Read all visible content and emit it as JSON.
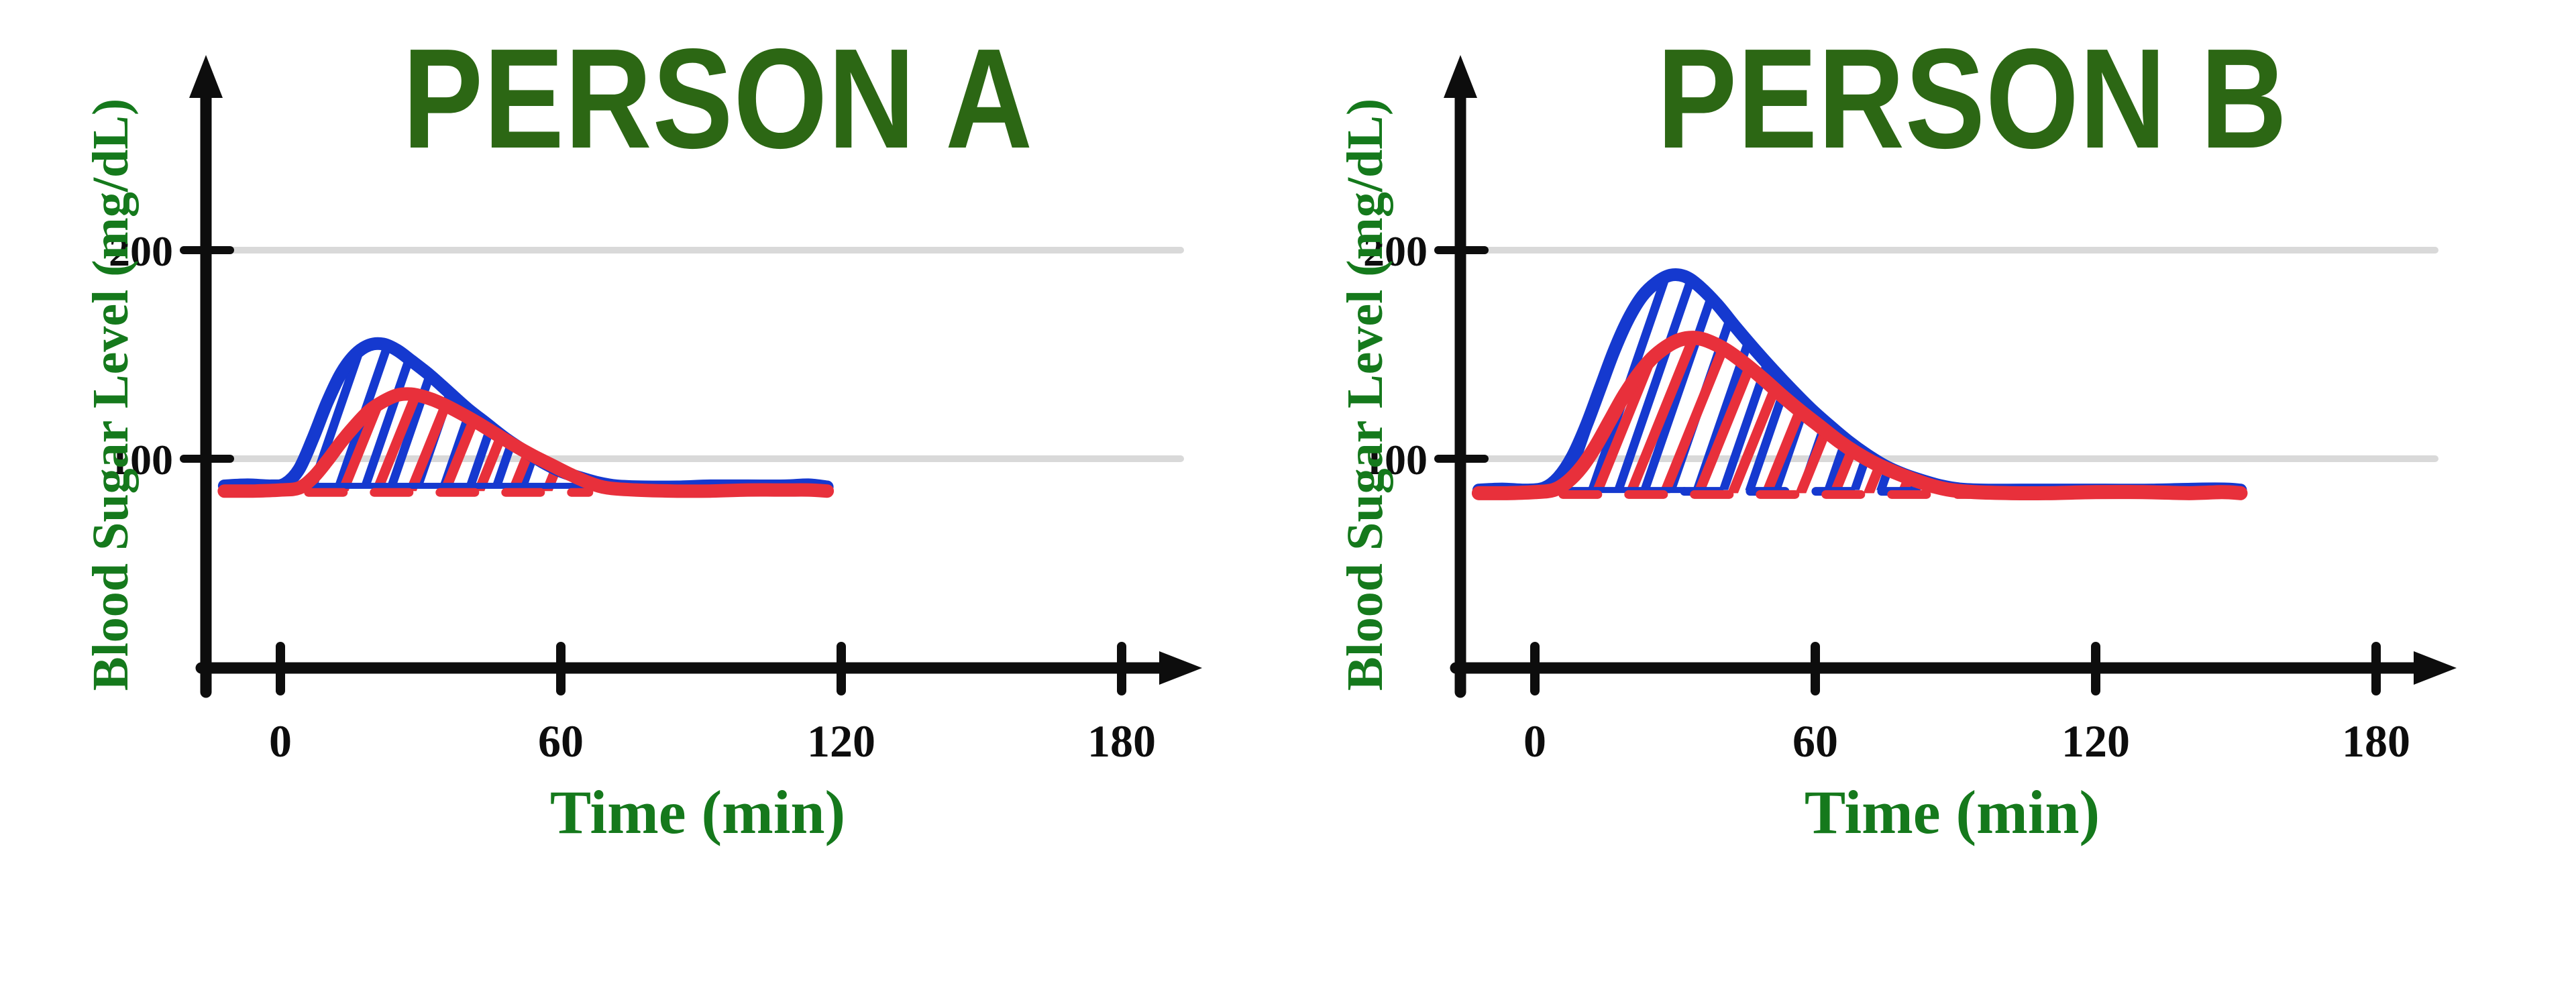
{
  "style": {
    "background": "#ffffff",
    "axis_color": "#0d0d0d",
    "grid_color": "#d9d9d9",
    "tick_text_color": "#0d0d0d",
    "title_color": "#2c6714",
    "label_color": "#15791c",
    "blue": "#1539cf",
    "red": "#e8303b"
  },
  "chart_data": [
    {
      "type": "line",
      "title": "PERSON A",
      "xlabel": "Time (min)",
      "ylabel": "Blood Sugar Level (mg/dL)",
      "x_ticks": [
        0,
        60,
        120,
        180
      ],
      "y_ticks": [
        200,
        100
      ],
      "gridlines_y": [
        200,
        100
      ],
      "x_axis_range_min": [
        -12,
        195
      ],
      "legend": "none",
      "series": [
        {
          "id": "blue-curve",
          "color": "#1539cf",
          "stroke_width": 19,
          "hatch": {
            "angle": 19,
            "spacing": 37,
            "width": 13
          },
          "baseline": 87,
          "baseline_solid": {
            "from": 0,
            "to": 68
          },
          "points": [
            [
              -12,
              87
            ],
            [
              -7,
              87.5
            ],
            [
              -2,
              87
            ],
            [
              1,
              88
            ],
            [
              4,
              95
            ],
            [
              7,
              110
            ],
            [
              10,
              127
            ],
            [
              13,
              141
            ],
            [
              16,
              150
            ],
            [
              19,
              154.5
            ],
            [
              22,
              155
            ],
            [
              25,
              152
            ],
            [
              28,
              147
            ],
            [
              32,
              140
            ],
            [
              36,
              132
            ],
            [
              40,
              124
            ],
            [
              44,
              117
            ],
            [
              48,
              110
            ],
            [
              52,
              104
            ],
            [
              56,
              98.5
            ],
            [
              60,
              94
            ],
            [
              64,
              91
            ],
            [
              68,
              88.5
            ],
            [
              72,
              87
            ],
            [
              78,
              86.5
            ],
            [
              85,
              86.5
            ],
            [
              92,
              87
            ],
            [
              100,
              87
            ],
            [
              108,
              87
            ],
            [
              113,
              87.5
            ],
            [
              117,
              86.5
            ]
          ]
        },
        {
          "id": "red-curve",
          "color": "#e8303b",
          "stroke_width": 20,
          "hatch": {
            "angle": 22,
            "spacing": 47,
            "width": 15
          },
          "baseline": 84.5,
          "baseline_dashed": {
            "from": 6,
            "to": 66
          },
          "points": [
            [
              -12,
              84.5
            ],
            [
              -6,
              84.5
            ],
            [
              0,
              85
            ],
            [
              4,
              86
            ],
            [
              7,
              91
            ],
            [
              10,
              99
            ],
            [
              13,
              108
            ],
            [
              16,
              116
            ],
            [
              19,
              123
            ],
            [
              22,
              127.5
            ],
            [
              25,
              130.5
            ],
            [
              28,
              131
            ],
            [
              31,
              129.5
            ],
            [
              34,
              127
            ],
            [
              38,
              122.5
            ],
            [
              42,
              117.5
            ],
            [
              46,
              112
            ],
            [
              50,
              106.5
            ],
            [
              54,
              101.5
            ],
            [
              58,
              97
            ],
            [
              62,
              92.5
            ],
            [
              66,
              88.5
            ],
            [
              70,
              86
            ],
            [
              76,
              85
            ],
            [
              84,
              84.5
            ],
            [
              92,
              84.5
            ],
            [
              100,
              85
            ],
            [
              108,
              85
            ],
            [
              113,
              85
            ],
            [
              117,
              84.5
            ]
          ]
        }
      ]
    },
    {
      "type": "line",
      "title": "PERSON B",
      "xlabel": "Time (min)",
      "ylabel": "Blood Sugar Level (mg/dL)",
      "x_ticks": [
        0,
        60,
        120,
        180
      ],
      "y_ticks": [
        200,
        100
      ],
      "gridlines_y": [
        200,
        100
      ],
      "x_axis_range_min": [
        -12,
        195
      ],
      "legend": "none",
      "series": [
        {
          "id": "blue-curve",
          "color": "#1539cf",
          "stroke_width": 19,
          "hatch": {
            "angle": 19,
            "spacing": 37,
            "width": 13
          },
          "baseline": 85,
          "baseline_solid": {
            "from": 0,
            "to": 32
          },
          "baseline_dashed": {
            "from": 32,
            "to": 90
          },
          "points": [
            [
              -12,
              85
            ],
            [
              -7,
              85.5
            ],
            [
              -2,
              85
            ],
            [
              2,
              86
            ],
            [
              5,
              91
            ],
            [
              8,
              101
            ],
            [
              11,
              116
            ],
            [
              14,
              134
            ],
            [
              17,
              152
            ],
            [
              20,
              167
            ],
            [
              23,
              178
            ],
            [
              26,
              184.5
            ],
            [
              29,
              188
            ],
            [
              32,
              187.5
            ],
            [
              35,
              183
            ],
            [
              39,
              174
            ],
            [
              43,
              163
            ],
            [
              47,
              152.5
            ],
            [
              51,
              142.5
            ],
            [
              55,
              133
            ],
            [
              59,
              124
            ],
            [
              63,
              116
            ],
            [
              67,
              108.5
            ],
            [
              71,
              102
            ],
            [
              75,
              96.5
            ],
            [
              79,
              92.5
            ],
            [
              83,
              89.5
            ],
            [
              87,
              87
            ],
            [
              91,
              85.5
            ],
            [
              96,
              85
            ],
            [
              104,
              85
            ],
            [
              112,
              85
            ],
            [
              122,
              85
            ],
            [
              132,
              85
            ],
            [
              142,
              85.5
            ],
            [
              148,
              85.5
            ],
            [
              151,
              85
            ]
          ]
        },
        {
          "id": "red-curve",
          "color": "#e8303b",
          "stroke_width": 21,
          "hatch": {
            "angle": 22,
            "spacing": 47,
            "width": 15
          },
          "baseline": 83.5,
          "baseline_dashed": {
            "from": 6,
            "to": 93
          },
          "points": [
            [
              -12,
              83.5
            ],
            [
              -6,
              83.5
            ],
            [
              0,
              84
            ],
            [
              4,
              85
            ],
            [
              7,
              89
            ],
            [
              10,
              96
            ],
            [
              13,
              106
            ],
            [
              16,
              118
            ],
            [
              19,
              130
            ],
            [
              22,
              140
            ],
            [
              25,
              148
            ],
            [
              28,
              153.5
            ],
            [
              31,
              157
            ],
            [
              34,
              158
            ],
            [
              37,
              156.5
            ],
            [
              41,
              152
            ],
            [
              45,
              145.5
            ],
            [
              49,
              138
            ],
            [
              53,
              130
            ],
            [
              57,
              122.5
            ],
            [
              61,
              115.5
            ],
            [
              65,
              108.5
            ],
            [
              69,
              102.5
            ],
            [
              73,
              97.5
            ],
            [
              77,
              93.5
            ],
            [
              81,
              90
            ],
            [
              85,
              87
            ],
            [
              89,
              85
            ],
            [
              94,
              84
            ],
            [
              102,
              83.5
            ],
            [
              110,
              83.5
            ],
            [
              120,
              84
            ],
            [
              130,
              84
            ],
            [
              140,
              83.5
            ],
            [
              147,
              84
            ],
            [
              151,
              83.5
            ]
          ]
        }
      ]
    }
  ]
}
